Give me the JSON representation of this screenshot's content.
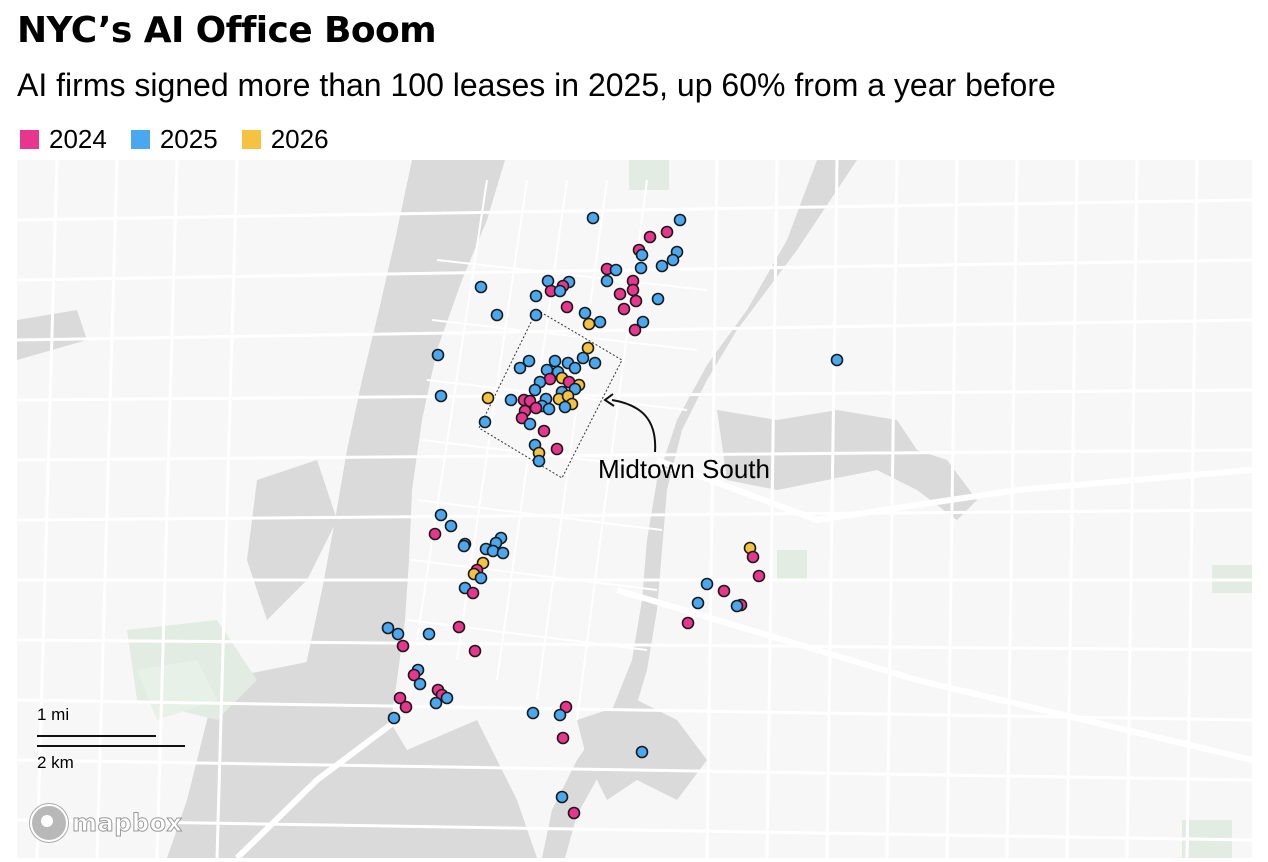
{
  "header": {
    "title": "NYC’s AI Office Boom",
    "subtitle": "AI firms signed more than 100 leases in 2025, up 60% from a year before"
  },
  "legend": {
    "items": [
      {
        "label": "2024",
        "color": "#e8368f"
      },
      {
        "label": "2025",
        "color": "#4aa8f0"
      },
      {
        "label": "2026",
        "color": "#f5c242"
      }
    ]
  },
  "callout": {
    "label": "Midtown South"
  },
  "scale": {
    "mi_label": "1 mi",
    "km_label": "2 km"
  },
  "attribution": {
    "label": "mapbox"
  },
  "colors": {
    "water": "#dadada",
    "land": "#f7f7f7",
    "park": "#e3ece3",
    "road": "#ffffff",
    "marker_stroke": "#1a1a1a"
  }
}
